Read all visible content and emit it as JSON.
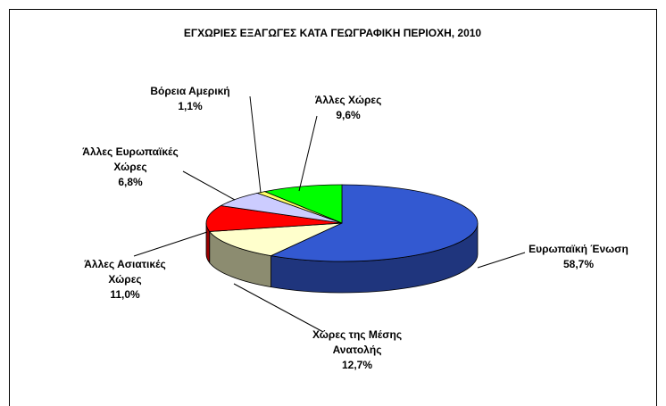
{
  "chart_data": {
    "type": "pie",
    "title": "ΕΓΧΩΡΙΕΣ ΕΞΑΓΩΓΕΣ ΚΑΤΑ ΓΕΩΓΡΑΦΙΚΗ ΠΕΡΙΟΧΗ, 2010",
    "categories": [
      "Ευρωπαϊκή Ένωση",
      "Χώρες της Μέσης Ανατολής",
      "Άλλες Ασιατικές Χώρες",
      "Άλλες Ευρωπαϊκές Χώρες",
      "Βόρεια Αμερική",
      "Άλλες Χώρες"
    ],
    "values": [
      58.7,
      12.7,
      11.0,
      6.8,
      1.1,
      9.6
    ],
    "value_labels": [
      "58,7%",
      "12,7%",
      "11,0%",
      "6,8%",
      "1,1%",
      "9,6%"
    ],
    "colors": [
      "#3359d1",
      "#ffffcc",
      "#ff0000",
      "#ccccff",
      "#ffff66",
      "#00ff00"
    ]
  }
}
